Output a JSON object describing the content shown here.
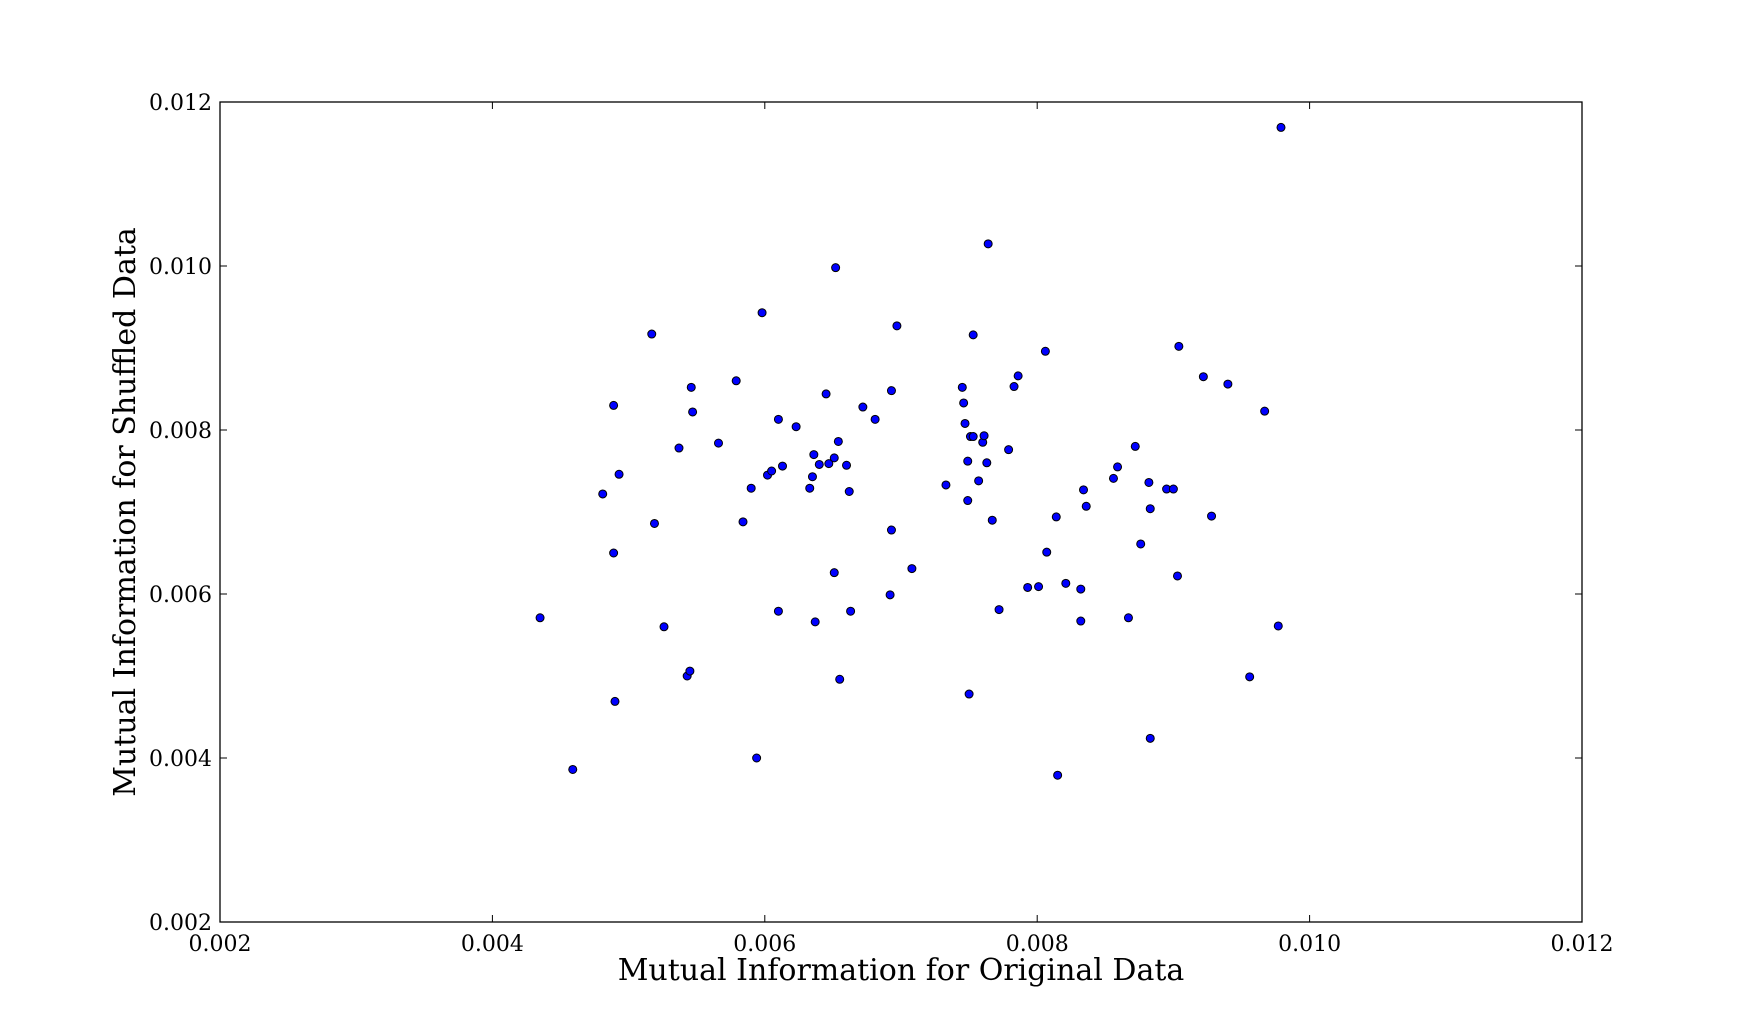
{
  "chart_data": {
    "type": "scatter",
    "title": "",
    "xlabel": "Mutual Information for Original Data",
    "ylabel": "Mutual Information for Shuffled Data",
    "xlim": [
      0.002,
      0.012
    ],
    "ylim": [
      0.002,
      0.012
    ],
    "x_ticks": [
      "0.002",
      "0.004",
      "0.006",
      "0.008",
      "0.010",
      "0.012"
    ],
    "y_ticks": [
      "0.002",
      "0.004",
      "0.006",
      "0.008",
      "0.010",
      "0.012"
    ],
    "grid": false,
    "marker_color": "#0000ff",
    "marker_edge_color": "#000000",
    "points": [
      [
        0.00435,
        0.00571
      ],
      [
        0.00459,
        0.00386
      ],
      [
        0.00481,
        0.00722
      ],
      [
        0.00489,
        0.0083
      ],
      [
        0.00489,
        0.0065
      ],
      [
        0.0049,
        0.00469
      ],
      [
        0.00493,
        0.00746
      ],
      [
        0.00517,
        0.00917
      ],
      [
        0.00519,
        0.00686
      ],
      [
        0.00526,
        0.0056
      ],
      [
        0.00537,
        0.00778
      ],
      [
        0.00543,
        0.005
      ],
      [
        0.00545,
        0.00506
      ],
      [
        0.00546,
        0.00852
      ],
      [
        0.00547,
        0.00822
      ],
      [
        0.00566,
        0.00784
      ],
      [
        0.00579,
        0.0086
      ],
      [
        0.00584,
        0.00688
      ],
      [
        0.0059,
        0.00729
      ],
      [
        0.00594,
        0.004
      ],
      [
        0.00598,
        0.00943
      ],
      [
        0.00602,
        0.00745
      ],
      [
        0.00605,
        0.0075
      ],
      [
        0.0061,
        0.00813
      ],
      [
        0.0061,
        0.00579
      ],
      [
        0.00613,
        0.00756
      ],
      [
        0.00623,
        0.00804
      ],
      [
        0.00633,
        0.00729
      ],
      [
        0.00635,
        0.00743
      ],
      [
        0.00636,
        0.0077
      ],
      [
        0.00637,
        0.00566
      ],
      [
        0.0064,
        0.00758
      ],
      [
        0.00645,
        0.00844
      ],
      [
        0.00647,
        0.00759
      ],
      [
        0.00651,
        0.00626
      ],
      [
        0.00651,
        0.00766
      ],
      [
        0.00652,
        0.00998
      ],
      [
        0.00654,
        0.00786
      ],
      [
        0.00655,
        0.00496
      ],
      [
        0.0066,
        0.00757
      ],
      [
        0.00662,
        0.00725
      ],
      [
        0.00663,
        0.00579
      ],
      [
        0.00672,
        0.00828
      ],
      [
        0.00681,
        0.00813
      ],
      [
        0.00692,
        0.00599
      ],
      [
        0.00693,
        0.00678
      ],
      [
        0.00693,
        0.00848
      ],
      [
        0.00697,
        0.00927
      ],
      [
        0.00708,
        0.00631
      ],
      [
        0.00733,
        0.00733
      ],
      [
        0.00745,
        0.00852
      ],
      [
        0.00746,
        0.00833
      ],
      [
        0.00747,
        0.00808
      ],
      [
        0.00749,
        0.00714
      ],
      [
        0.00749,
        0.00762
      ],
      [
        0.0075,
        0.00478
      ],
      [
        0.00751,
        0.00792
      ],
      [
        0.00753,
        0.00792
      ],
      [
        0.00753,
        0.00916
      ],
      [
        0.00757,
        0.00738
      ],
      [
        0.0076,
        0.00785
      ],
      [
        0.00761,
        0.00793
      ],
      [
        0.00763,
        0.0076
      ],
      [
        0.00764,
        0.01027
      ],
      [
        0.00767,
        0.0069
      ],
      [
        0.00772,
        0.00581
      ],
      [
        0.00779,
        0.00776
      ],
      [
        0.00783,
        0.00853
      ],
      [
        0.00786,
        0.00866
      ],
      [
        0.00793,
        0.00608
      ],
      [
        0.00801,
        0.00609
      ],
      [
        0.00806,
        0.00896
      ],
      [
        0.00807,
        0.00651
      ],
      [
        0.00814,
        0.00694
      ],
      [
        0.00815,
        0.00379
      ],
      [
        0.00821,
        0.00613
      ],
      [
        0.00832,
        0.00606
      ],
      [
        0.00832,
        0.00567
      ],
      [
        0.00834,
        0.00727
      ],
      [
        0.00836,
        0.00707
      ],
      [
        0.00856,
        0.00741
      ],
      [
        0.00859,
        0.00755
      ],
      [
        0.00867,
        0.00571
      ],
      [
        0.00872,
        0.0078
      ],
      [
        0.00876,
        0.00661
      ],
      [
        0.00882,
        0.00736
      ],
      [
        0.00883,
        0.00704
      ],
      [
        0.00883,
        0.00424
      ],
      [
        0.00895,
        0.00728
      ],
      [
        0.009,
        0.00728
      ],
      [
        0.00903,
        0.00622
      ],
      [
        0.00904,
        0.00902
      ],
      [
        0.00922,
        0.00865
      ],
      [
        0.00928,
        0.00695
      ],
      [
        0.0094,
        0.00856
      ],
      [
        0.00956,
        0.00499
      ],
      [
        0.00967,
        0.00823
      ],
      [
        0.00977,
        0.00561
      ],
      [
        0.00979,
        0.01169
      ]
    ]
  }
}
